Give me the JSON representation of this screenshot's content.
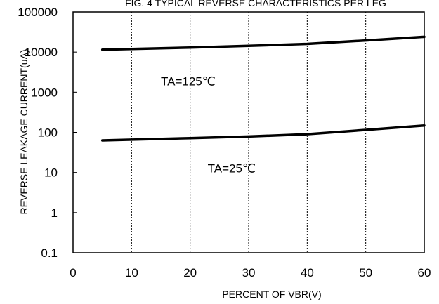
{
  "chart_data": {
    "type": "line",
    "title": "FIG. 4 TYPICAL REVERSE CHARACTERISTICS PER LEG",
    "xlabel": "PERCENT OF VBR(V)",
    "ylabel": "REVERSE LEAKAGE CURRENT(uA)",
    "x_ticks": [
      "0",
      "10",
      "20",
      "30",
      "40",
      "50",
      "60"
    ],
    "y_ticks": [
      "0.1",
      "1",
      "10",
      "100",
      "1000",
      "10000",
      "100000"
    ],
    "xlim": [
      0,
      60
    ],
    "ylim": [
      0.1,
      100000
    ],
    "y_scale": "log",
    "grid": {
      "x": true,
      "y": false
    },
    "series": [
      {
        "name": "TA=125℃",
        "x": [
          5,
          20,
          30,
          40,
          50,
          60
        ],
        "y": [
          11500,
          13000,
          14300,
          16000,
          19500,
          24000
        ]
      },
      {
        "name": "TA=25℃",
        "x": [
          5,
          20,
          30,
          40,
          50,
          60
        ],
        "y": [
          63,
          72,
          79,
          90,
          115,
          148
        ]
      }
    ],
    "annotations": [
      {
        "text": "TA=125℃",
        "x": 15,
        "y": 1500
      },
      {
        "text": "TA=25℃",
        "x": 23,
        "y": 10
      }
    ]
  }
}
